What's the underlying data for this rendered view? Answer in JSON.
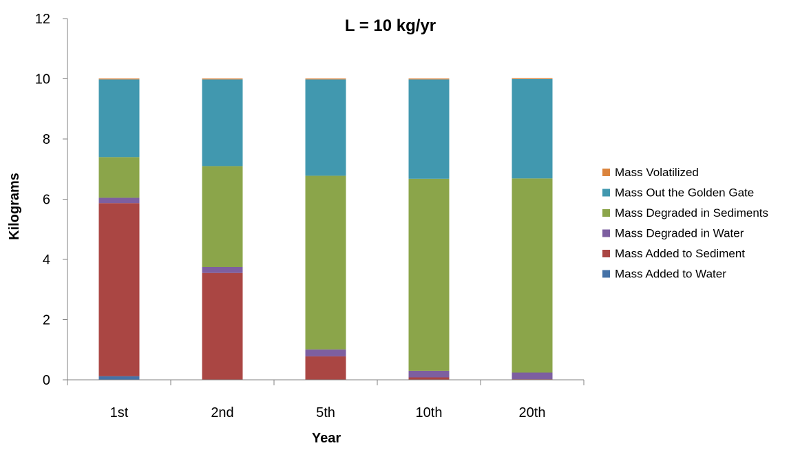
{
  "chart_data": {
    "type": "bar",
    "stacked": true,
    "title": "L = 10 kg/yr",
    "xlabel": "Year",
    "ylabel": "Kilograms",
    "ylim": [
      0,
      12
    ],
    "yticks": [
      0,
      2,
      4,
      6,
      8,
      10,
      12
    ],
    "grid": false,
    "legend_position": "right",
    "categories": [
      "1st",
      "2nd",
      "5th",
      "10th",
      "20th"
    ],
    "series": [
      {
        "name": "Mass Added to Water",
        "color": "#4572A7",
        "values": [
          0.12,
          0.0,
          0.0,
          0.0,
          0.0
        ]
      },
      {
        "name": "Mass Added to Sediment",
        "color": "#AA4643",
        "values": [
          5.75,
          3.55,
          0.78,
          0.08,
          0.02
        ]
      },
      {
        "name": "Mass Degraded in Water",
        "color": "#7D5FA0",
        "values": [
          0.18,
          0.2,
          0.23,
          0.22,
          0.22
        ]
      },
      {
        "name": "Mass Degraded in Sediments",
        "color": "#8BA54A",
        "values": [
          1.35,
          3.35,
          5.77,
          6.38,
          6.45
        ]
      },
      {
        "name": "Mass Out the Golden Gate",
        "color": "#4198AF",
        "values": [
          2.58,
          2.88,
          3.2,
          3.3,
          3.3
        ]
      },
      {
        "name": "Mass Volatilized",
        "color": "#DB843D",
        "values": [
          0.03,
          0.03,
          0.03,
          0.03,
          0.03
        ]
      }
    ]
  }
}
